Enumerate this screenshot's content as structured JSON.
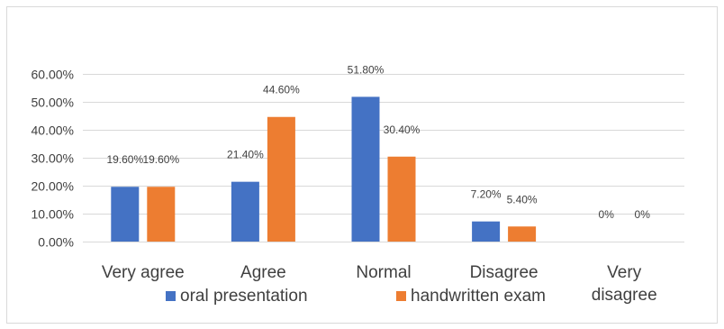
{
  "chart_data": {
    "type": "bar",
    "title": "",
    "xlabel": "",
    "ylabel": "",
    "categories": [
      "Very agree",
      "Agree",
      "Normal",
      "Disagree",
      "Very disagree"
    ],
    "category_lines": [
      [
        "Very agree"
      ],
      [
        "Agree"
      ],
      [
        "Normal"
      ],
      [
        "Disagree"
      ],
      [
        "Very",
        "disagree"
      ]
    ],
    "series": [
      {
        "name": "oral presentation",
        "color": "#4472c4",
        "values": [
          19.6,
          21.4,
          51.8,
          7.2,
          0
        ],
        "labels": [
          "19.60%",
          "21.40%",
          "51.80%",
          "7.20%",
          "0%"
        ]
      },
      {
        "name": "handwritten exam",
        "color": "#ed7d31",
        "values": [
          19.6,
          44.6,
          30.4,
          5.4,
          0
        ],
        "labels": [
          "19.60%",
          "44.60%",
          "30.40%",
          "5.40%",
          "0%"
        ]
      }
    ],
    "ylim": [
      0,
      60
    ],
    "yticks": [
      0,
      10,
      20,
      30,
      40,
      50,
      60
    ],
    "ytick_labels": [
      "0.00%",
      "10.00%",
      "20.00%",
      "30.00%",
      "40.00%",
      "50.00%",
      "60.00%"
    ],
    "grid": true,
    "legend_position": "bottom"
  }
}
